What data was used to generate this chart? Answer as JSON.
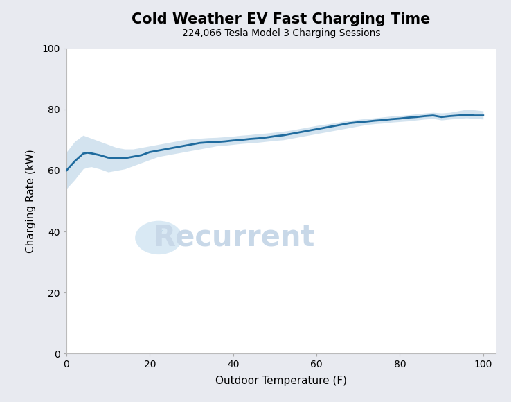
{
  "title": "Cold Weather EV Fast Charging Time",
  "subtitle": "224,066 Tesla Model 3 Charging Sessions",
  "xlabel": "Outdoor Temperature (F)",
  "ylabel": "Charging Rate (kW)",
  "xlim": [
    0,
    103
  ],
  "ylim": [
    0,
    100
  ],
  "xticks": [
    0,
    20,
    40,
    60,
    80,
    100
  ],
  "yticks": [
    0,
    20,
    40,
    60,
    80,
    100
  ],
  "line_color": "#1f6b9e",
  "fill_color": "#a8c8e0",
  "bg_color": "#ffffff",
  "outer_bg": "#e8eaf0",
  "watermark_text": "Recurrent",
  "watermark_color": "#c8d8e8",
  "watermark_circle_color": "#d0e4f2",
  "watermark_bolt_color": "#7aaed0",
  "x": [
    0,
    2,
    4,
    5,
    6,
    8,
    10,
    12,
    14,
    16,
    18,
    20,
    22,
    24,
    26,
    28,
    30,
    32,
    34,
    36,
    38,
    40,
    42,
    44,
    46,
    48,
    50,
    52,
    54,
    56,
    58,
    60,
    62,
    64,
    66,
    68,
    70,
    72,
    74,
    76,
    78,
    80,
    82,
    84,
    86,
    88,
    90,
    92,
    94,
    96,
    98,
    100
  ],
  "y_mean": [
    60.0,
    63.0,
    65.5,
    65.8,
    65.6,
    65.0,
    64.2,
    64.0,
    64.0,
    64.5,
    65.0,
    66.0,
    66.5,
    67.0,
    67.5,
    68.0,
    68.5,
    69.0,
    69.2,
    69.3,
    69.5,
    69.8,
    70.0,
    70.3,
    70.5,
    70.8,
    71.2,
    71.5,
    72.0,
    72.5,
    73.0,
    73.5,
    74.0,
    74.5,
    75.0,
    75.5,
    75.8,
    76.0,
    76.3,
    76.5,
    76.8,
    77.0,
    77.3,
    77.5,
    77.8,
    78.0,
    77.5,
    77.8,
    78.0,
    78.2,
    78.0,
    78.0
  ],
  "y_upper": [
    66.0,
    69.5,
    71.5,
    71.0,
    70.5,
    69.5,
    68.5,
    67.5,
    67.0,
    67.0,
    67.5,
    68.0,
    68.5,
    69.0,
    69.5,
    70.0,
    70.3,
    70.5,
    70.7,
    70.8,
    71.0,
    71.2,
    71.5,
    71.7,
    72.0,
    72.2,
    72.5,
    72.8,
    73.2,
    73.7,
    74.2,
    74.7,
    75.1,
    75.5,
    76.0,
    76.4,
    76.7,
    77.0,
    77.2,
    77.5,
    77.8,
    78.0,
    78.2,
    78.5,
    78.8,
    79.0,
    78.8,
    79.0,
    79.5,
    80.0,
    79.8,
    79.5
  ],
  "y_lower": [
    54.0,
    57.0,
    60.5,
    61.0,
    61.2,
    60.5,
    59.5,
    60.0,
    60.5,
    61.5,
    62.5,
    63.5,
    64.5,
    65.0,
    65.5,
    66.0,
    66.5,
    67.0,
    67.5,
    68.0,
    68.2,
    68.5,
    68.8,
    69.0,
    69.2,
    69.5,
    69.8,
    70.0,
    70.5,
    71.0,
    71.5,
    72.0,
    72.5,
    73.0,
    73.5,
    74.0,
    74.5,
    75.0,
    75.3,
    75.5,
    75.8,
    76.0,
    76.2,
    76.5,
    76.8,
    77.0,
    76.5,
    76.8,
    77.0,
    77.2,
    77.0,
    76.8
  ]
}
